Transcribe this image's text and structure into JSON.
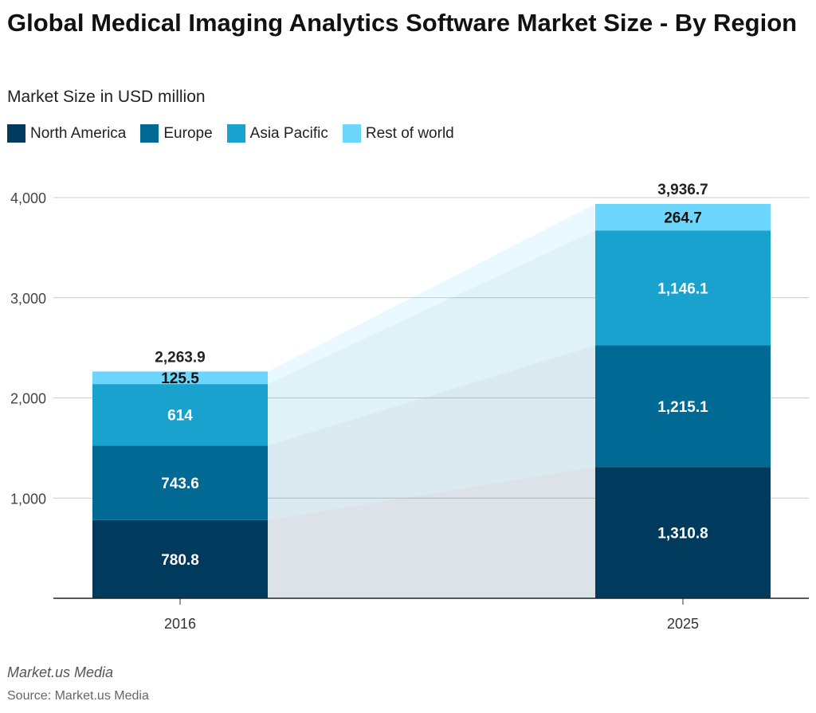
{
  "chart_data": {
    "type": "bar",
    "stacked": true,
    "title": "Global Medical Imaging Analytics Software Market Size - By Region",
    "subtitle": "Market Size in USD million",
    "categories": [
      "2016",
      "2025"
    ],
    "series": [
      {
        "name": "North America",
        "values": [
          780.8,
          1310.8
        ],
        "labels": [
          "780.8",
          "1,310.8"
        ],
        "color": "#003a5c"
      },
      {
        "name": "Europe",
        "values": [
          743.6,
          1215.1
        ],
        "labels": [
          "743.6",
          "1,215.1"
        ],
        "color": "#006a95"
      },
      {
        "name": "Asia Pacific",
        "values": [
          614,
          1146.1
        ],
        "labels": [
          "614",
          "1,146.1"
        ],
        "color": "#1aa2cf"
      },
      {
        "name": "Rest of world",
        "values": [
          125.5,
          264.7
        ],
        "labels": [
          "125.5",
          "264.7"
        ],
        "color": "#6dd6fd"
      }
    ],
    "totals": [
      "2,263.9",
      "3,936.7"
    ],
    "ylim": [
      0,
      4000
    ],
    "yticks": [
      1000,
      2000,
      3000,
      4000
    ],
    "ytick_labels": [
      "1,000",
      "2,000",
      "3,000",
      "4,000"
    ],
    "grid": true,
    "legend": "top-left"
  },
  "footer": {
    "brand": "Market.us Media",
    "source": "Source: Market.us Media"
  }
}
